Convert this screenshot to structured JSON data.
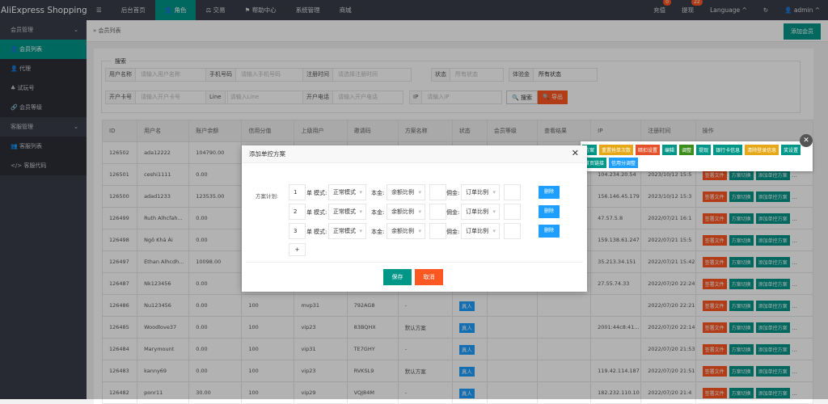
{
  "app_title": "AliExpress Shopping...",
  "nav": [
    "后台首页",
    "角色",
    "交易",
    "帮助中心",
    "系统管理",
    "商城"
  ],
  "topright": {
    "recharge": "充值",
    "recharge_badge": "0",
    "withdraw": "提现",
    "withdraw_badge": "22",
    "language": "Language",
    "user": "admin"
  },
  "sidebar": {
    "group1": "会员管理",
    "items1": [
      "会员列表",
      "代理",
      "试玩号",
      "会员等级"
    ],
    "group2": "客服管理",
    "items2": [
      "客服列表",
      "客服代码"
    ]
  },
  "breadcrumb": "会员列表",
  "add_member": "添加会员",
  "search": {
    "legend": "搜索",
    "fields": [
      {
        "label": "用户名称",
        "ph": "请输入用户名称"
      },
      {
        "label": "手机号码",
        "ph": "请输入手机号码"
      },
      {
        "label": "注册时间",
        "ph": "请选择注册时间"
      },
      {
        "label": "状态",
        "ph": "所有状态"
      },
      {
        "label": "体验金",
        "ph": "所有状态"
      },
      {
        "label": "开户卡号",
        "ph": "请输入开户卡号"
      },
      {
        "label": "Line",
        "ph": "请输入Line"
      },
      {
        "label": "开户电话",
        "ph": "请输入开户电话"
      },
      {
        "label": "IP",
        "ph": "请输入IP"
      }
    ],
    "search_btn": "搜索",
    "export_btn": "导出"
  },
  "table": {
    "headers": [
      "ID",
      "用户名",
      "账户余额",
      "信用分值",
      "上级用户",
      "邀请码",
      "方案名称",
      "状态",
      "会员等级",
      "查看结果",
      "IP",
      "注册时间",
      "操作"
    ],
    "rows": [
      [
        "126502",
        "ada12222",
        "104790.00",
        "",
        "",
        "",
        "",
        "",
        "",
        "",
        "",
        "",
        ""
      ],
      [
        "126501",
        "ceshi1111",
        "0.00",
        "",
        "",
        "",
        "",
        "",
        "",
        "",
        "104.234.20.54",
        "2023/10/12 15:5",
        ""
      ],
      [
        "126500",
        "adad1233",
        "123535.00",
        "",
        "",
        "",
        "",
        "",
        "",
        "",
        "156.146.45.179",
        "2023/10/12 15:3",
        ""
      ],
      [
        "126499",
        "Ruth Alhcfah...",
        "0.00",
        "",
        "",
        "",
        "",
        "",
        "",
        "",
        "47.57.5.8",
        "2022/07/21 16:1",
        ""
      ],
      [
        "126498",
        "Ngô Khả Ái",
        "0.00",
        "",
        "",
        "",
        "",
        "",
        "",
        "",
        "159.138.61.247",
        "2022/07/21 15:5",
        ""
      ],
      [
        "126497",
        "Ethan Alhcdh...",
        "10098.00",
        "",
        "",
        "",
        "",
        "",
        "",
        "",
        "35.213.34.151",
        "2022/07/21 15:42",
        ""
      ],
      [
        "126487",
        "Nk123456",
        "0.00",
        "",
        "",
        "",
        "",
        "",
        "",
        "",
        "27.55.74.33",
        "2022/07/20 22:24",
        ""
      ],
      [
        "126486",
        "Nu123456",
        "0.00",
        "100",
        "mvp31",
        "792AG8",
        "-",
        "真人",
        "",
        "",
        "",
        "2022/07/20 22:21",
        ""
      ],
      [
        "126485",
        "Woodlove37",
        "0.00",
        "100",
        "vip23",
        "83BQHX",
        "默认方案",
        "真人",
        "",
        "",
        "2001:44c8:41...",
        "2022/07/20 22:14",
        ""
      ],
      [
        "126484",
        "Marymount",
        "0.00",
        "100",
        "vip31",
        "TE7GHY",
        "-",
        "真人",
        "",
        "",
        "",
        "2022/07/20 21:53",
        ""
      ],
      [
        "126483",
        "kanny69",
        "0.00",
        "100",
        "vip23",
        "RVKSL9",
        "默认方案",
        "真人",
        "",
        "",
        "119.42.114.187",
        "2022/07/20 21:51",
        ""
      ],
      [
        "126482",
        "ponr11",
        "30.00",
        "100",
        "vip29",
        "VQJ84M",
        "-",
        "真人",
        "",
        "",
        "182.232.110.10",
        "2022/07/20 21:4",
        ""
      ]
    ],
    "row_actions": [
      "签署文件",
      "方案切换",
      "添加单控方案",
      "..."
    ]
  },
  "popup_actions": [
    {
      "label": "方案",
      "color": "#009688"
    },
    {
      "label": "重置抢单次数",
      "color": "#e6a817"
    },
    {
      "label": "暗扣设置",
      "color": "#e5512a"
    },
    {
      "label": "编辑",
      "color": "#009688"
    },
    {
      "label": "调整",
      "color": "#3c8d1c"
    },
    {
      "label": "提现",
      "color": "#009688"
    },
    {
      "label": "银行卡信息",
      "color": "#009688"
    },
    {
      "label": "清除登录信息",
      "color": "#e6a817"
    },
    {
      "label": "奖设置",
      "color": "#009688"
    },
    {
      "label": "首页链接",
      "color": "#009688"
    },
    {
      "label": "信用分调整",
      "color": "#1e9fff"
    }
  ],
  "modal": {
    "title": "添加单控方案",
    "plan_label": "方案计划:",
    "unit": "单",
    "mode_label": "模式:",
    "principal_label": "本金:",
    "commission_label": "佣金:",
    "rows": [
      {
        "n": "1",
        "mode": "正常模式",
        "principal": "余额比例",
        "commission": "订单比例"
      },
      {
        "n": "2",
        "mode": "正常模式",
        "principal": "余额比例",
        "commission": "订单比例"
      },
      {
        "n": "3",
        "mode": "正常模式",
        "principal": "余额比例",
        "commission": "订单比例"
      }
    ],
    "delete": "删除",
    "add": "+",
    "save": "保存",
    "cancel": "取消"
  },
  "colors": {
    "primary": "#009688",
    "danger": "#ff5722",
    "info": "#1e9fff"
  }
}
